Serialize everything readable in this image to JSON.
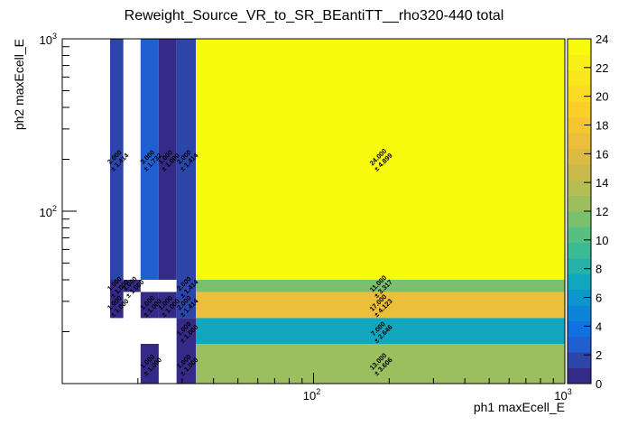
{
  "chart_data": {
    "type": "heatmap",
    "title": "Reweight_Source_VR_to_SR_BEantiTT__rho320-440 total",
    "xlabel": "ph1 maxEcell_E",
    "ylabel": "ph2 maxEcell_E",
    "x_scale": "log",
    "y_scale": "log",
    "xlim": [
      10,
      1000
    ],
    "ylim": [
      10,
      1000
    ],
    "x_tick_labels": [
      "10^{2}",
      "10^{3}"
    ],
    "y_tick_labels": [
      "10^{2}",
      "10^{3}"
    ],
    "z_range": [
      0,
      24
    ],
    "z_ticks": [
      0,
      2,
      4,
      6,
      8,
      10,
      12,
      14,
      16,
      18,
      20,
      22,
      24
    ],
    "palette": [
      "#352a87",
      "#2d45a8",
      "#1f5fd0",
      "#0f72e0",
      "#0c84d8",
      "#0c96cc",
      "#10a6bd",
      "#26b2a8",
      "#3bba94",
      "#58bf82",
      "#7ac06f",
      "#9bbf5e",
      "#b6bd53",
      "#cbba4b",
      "#dcbb43",
      "#ebbf39",
      "#f5c62f",
      "#fad028",
      "#fbdb22",
      "#f9e61c",
      "#f8f016",
      "#f9fb0e"
    ],
    "cells": [
      {
        "x": [
          15.5,
          17.5
        ],
        "y": [
          40,
          1000
        ],
        "value": 2,
        "label": "2.000\n± 1.414"
      },
      {
        "x": [
          20.5,
          24.2
        ],
        "y": [
          40,
          1000
        ],
        "value": 3,
        "label": "3.000\n± 1.732"
      },
      {
        "x": [
          24.2,
          28.5
        ],
        "y": [
          40,
          1000
        ],
        "value": 1,
        "label": "1.000\n± 1.000"
      },
      {
        "x": [
          28.5,
          34
        ],
        "y": [
          40,
          1000
        ],
        "value": 2,
        "label": "2.000\n± 1.414"
      },
      {
        "x": [
          34,
          1000
        ],
        "y": [
          40,
          1000
        ],
        "value": 24,
        "label": "24.000\n± 4.899"
      },
      {
        "x": [
          15.5,
          17.5
        ],
        "y": [
          34,
          40
        ],
        "value": 1,
        "label": "1.000\n± 1.000"
      },
      {
        "x": [
          17.5,
          20.5
        ],
        "y": [
          34,
          40
        ],
        "value": 1,
        "label": "1.000\n± 1.000"
      },
      {
        "x": [
          28.5,
          34
        ],
        "y": [
          34,
          40
        ],
        "value": 2,
        "label": "2.000\n± 1.414"
      },
      {
        "x": [
          34,
          1000
        ],
        "y": [
          34,
          40
        ],
        "value": 11,
        "label": "11.000\n± 3.317"
      },
      {
        "x": [
          15.5,
          17.5
        ],
        "y": [
          24,
          34
        ],
        "value": 1,
        "label": "1.000\n± 1.000"
      },
      {
        "x": [
          20.5,
          24.2
        ],
        "y": [
          24,
          34
        ],
        "value": 1,
        "label": "1.000\n± 1.000"
      },
      {
        "x": [
          24.2,
          28.5
        ],
        "y": [
          24,
          34
        ],
        "value": 1,
        "label": "1.000\n± 1.000"
      },
      {
        "x": [
          28.5,
          34
        ],
        "y": [
          24,
          34
        ],
        "value": 2,
        "label": "2.000\n± 1.414"
      },
      {
        "x": [
          34,
          1000
        ],
        "y": [
          24,
          34
        ],
        "value": 17,
        "label": "17.000\n± 4.123"
      },
      {
        "x": [
          28.5,
          34
        ],
        "y": [
          17,
          24
        ],
        "value": 1,
        "label": "1.000\n± 1.000"
      },
      {
        "x": [
          34,
          1000
        ],
        "y": [
          17,
          24
        ],
        "value": 7,
        "label": "7.000\n± 2.646"
      },
      {
        "x": [
          20.5,
          24.2
        ],
        "y": [
          10,
          17
        ],
        "value": 1,
        "label": "1.000\n± 1.000"
      },
      {
        "x": [
          28.5,
          34
        ],
        "y": [
          10,
          17
        ],
        "value": 1,
        "label": "1.000\n± 1.000"
      },
      {
        "x": [
          34,
          1000
        ],
        "y": [
          10,
          17
        ],
        "value": 13,
        "label": "13.000\n± 3.606"
      }
    ]
  }
}
